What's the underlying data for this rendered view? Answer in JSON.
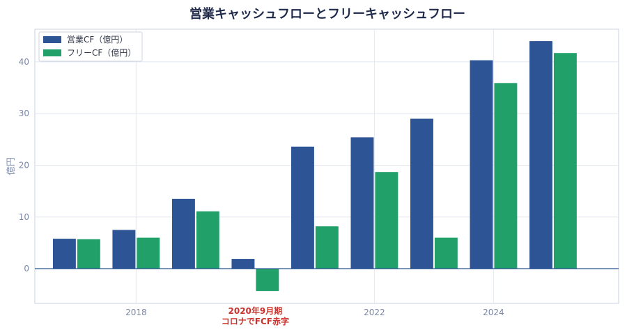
{
  "chart_data": {
    "type": "bar",
    "title": "営業キャッシュフローとフリーキャッシュフロー",
    "ylabel": "億円",
    "xlabel": "",
    "x": [
      2017,
      2018,
      2019,
      2020,
      2021,
      2022,
      2023,
      2024,
      2025
    ],
    "xlim": [
      2016.3,
      2026.1
    ],
    "x_ticks": [
      2018,
      2022,
      2024
    ],
    "ylim": [
      -6.7,
      46.3
    ],
    "y_ticks": [
      0,
      10,
      20,
      30,
      40
    ],
    "grid": true,
    "legend_position": "top-left",
    "series": [
      {
        "name": "営業CF（億円）",
        "color": "#2d5495",
        "values": [
          5.8,
          7.5,
          13.5,
          1.9,
          23.6,
          25.4,
          29.0,
          40.3,
          44.0
        ]
      },
      {
        "name": "フリーCF（億円）",
        "color": "#21a06a",
        "values": [
          5.7,
          6.0,
          11.1,
          -4.3,
          8.2,
          18.7,
          6.0,
          35.9,
          41.7
        ]
      }
    ],
    "annotations": [
      {
        "x": 2020,
        "lines": [
          "2020年9月期",
          "コロナでFCF赤字"
        ],
        "color": "#c8342d"
      }
    ],
    "colors": {
      "zero_line": "#2d5495",
      "grid": "#e3e8f2",
      "frame": "#c9d1e3"
    }
  }
}
